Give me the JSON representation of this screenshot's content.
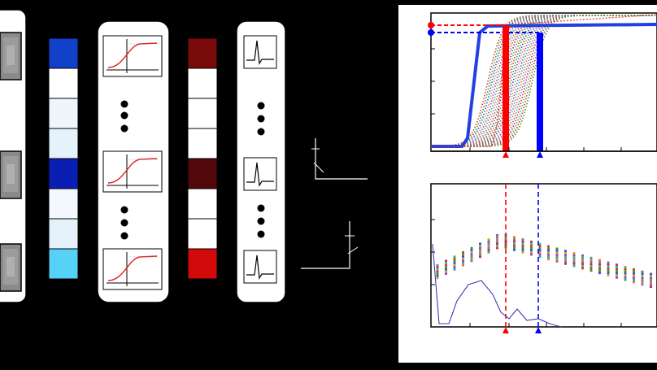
{
  "figure": {
    "left_panel": {
      "filter_images": [
        "filter-1",
        "filter-2",
        "filter-3"
      ],
      "blue_activations": [
        "#1240c8",
        "#ffffff",
        "#eef6fc",
        "#e6f2fb",
        "#0a1eb4",
        "#f2f8fd",
        "#e4f0fa",
        "#56d2f8"
      ],
      "red_activations": [
        "#780a0a",
        "#ffffff",
        "#ffffff",
        "#ffffff",
        "#50080a",
        "#ffffff",
        "#ffffff",
        "#d20a0a"
      ],
      "nonlinearity_count": 3,
      "spike_waveform_count": 3
    },
    "top_plot": {
      "red_threshold_color": "#ff0000",
      "blue_threshold_color": "#0000ff"
    },
    "bottom_plot": {
      "red_marker_color": "#ff0000",
      "blue_marker_color": "#0000ff",
      "curve_color": "#3c3cb4"
    }
  }
}
